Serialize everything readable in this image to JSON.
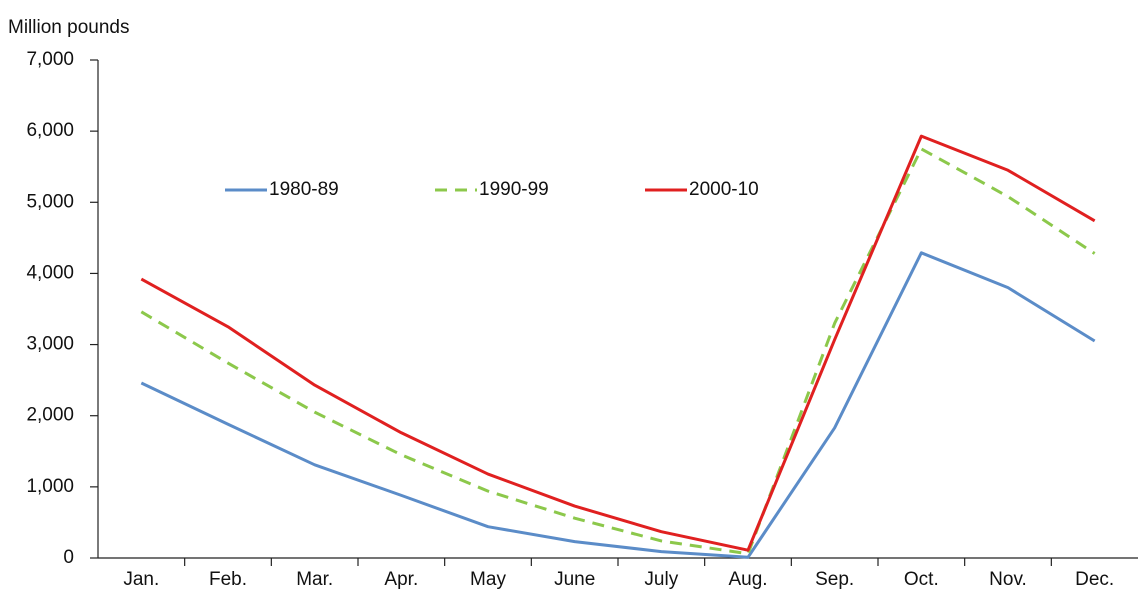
{
  "chart_data": {
    "type": "line",
    "ylabel": "Million pounds",
    "categories": [
      "Jan.",
      "Feb.",
      "Mar.",
      "Apr.",
      "May",
      "June",
      "July",
      "Aug.",
      "Sep.",
      "Oct.",
      "Nov.",
      "Dec."
    ],
    "series": [
      {
        "name": "1980-89",
        "color": "#5b8cc8",
        "linestyle": "solid",
        "values": [
          2460,
          1880,
          1310,
          880,
          440,
          230,
          90,
          10,
          1830,
          4290,
          3800,
          3050
        ]
      },
      {
        "name": "1990-99",
        "color": "#8cc84b",
        "linestyle": "dashed",
        "values": [
          3460,
          2740,
          2050,
          1450,
          940,
          560,
          240,
          60,
          3300,
          5750,
          5080,
          4280
        ]
      },
      {
        "name": "2000-10",
        "color": "#e02020",
        "linestyle": "solid",
        "values": [
          3920,
          3250,
          2430,
          1760,
          1180,
          730,
          370,
          110,
          3070,
          5930,
          5450,
          4740
        ]
      }
    ],
    "ylim": [
      0,
      7000
    ],
    "yticks": [
      0,
      {
        "value": 1000,
        "label": "1,000"
      },
      {
        "value": 2000,
        "label": "2,000"
      },
      {
        "value": 3000,
        "label": "3,000"
      },
      {
        "value": 4000,
        "label": "4,000"
      },
      {
        "value": 5000,
        "label": "5,000"
      },
      {
        "value": 6000,
        "label": "6,000"
      },
      {
        "value": 7000,
        "label": "7,000"
      }
    ],
    "grid": false
  }
}
